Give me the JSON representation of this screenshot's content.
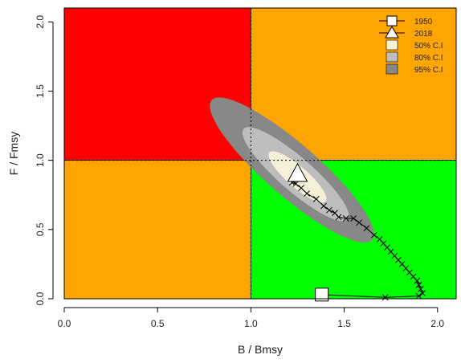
{
  "chart_data": {
    "type": "scatter",
    "title": "",
    "xlabel": "B / Bmsy",
    "ylabel": "F / Fmsy",
    "xlim": [
      0,
      2.1
    ],
    "ylim": [
      0,
      2.1
    ],
    "x_ticks": [
      0.0,
      0.5,
      1.0,
      1.5,
      2.0
    ],
    "x_tick_labels": [
      "0.0",
      "0.5",
      "1.0",
      "1.5",
      "2.0"
    ],
    "y_ticks": [
      0.0,
      0.5,
      1.0,
      1.5,
      2.0
    ],
    "y_tick_labels": [
      "0.0",
      "0.5",
      "1.0",
      "1.5",
      "2.0"
    ],
    "reference_lines": {
      "x": 1.0,
      "y": 1.0,
      "style": "dotted"
    },
    "quadrants": [
      {
        "name": "overfished-overfishing",
        "color": "#ff0000",
        "x": [
          0,
          1
        ],
        "y": [
          1,
          2.1
        ]
      },
      {
        "name": "healthy-overfishing",
        "color": "#ffa500",
        "x": [
          1,
          2.1
        ],
        "y": [
          1,
          2.1
        ]
      },
      {
        "name": "overfished-no-overfishing",
        "color": "#ffa500",
        "x": [
          0,
          1
        ],
        "y": [
          0,
          1
        ]
      },
      {
        "name": "healthy",
        "color": "#00ff00",
        "x": [
          1,
          2.1
        ],
        "y": [
          0,
          1
        ]
      }
    ],
    "trajectory": {
      "x": [
        1.38,
        1.72,
        1.9,
        1.92,
        1.91,
        1.9,
        1.89,
        1.87,
        1.85,
        1.83,
        1.81,
        1.79,
        1.77,
        1.75,
        1.73,
        1.71,
        1.69,
        1.66,
        1.62,
        1.58,
        1.55,
        1.51,
        1.47,
        1.45,
        1.42,
        1.39,
        1.35,
        1.3,
        1.27,
        1.24,
        1.22,
        1.23,
        1.25
      ],
      "y": [
        0.03,
        0.01,
        0.02,
        0.04,
        0.07,
        0.1,
        0.13,
        0.16,
        0.19,
        0.22,
        0.25,
        0.28,
        0.31,
        0.34,
        0.37,
        0.4,
        0.43,
        0.46,
        0.51,
        0.55,
        0.58,
        0.58,
        0.59,
        0.62,
        0.64,
        0.67,
        0.72,
        0.76,
        0.8,
        0.83,
        0.84,
        0.85,
        0.9
      ]
    },
    "start_point": {
      "label": "1950",
      "x": 1.38,
      "y": 0.03
    },
    "end_point": {
      "label": "2018",
      "x": 1.25,
      "y": 0.9
    },
    "confidence_regions": [
      {
        "label": "95% C.I",
        "color": "#888888",
        "cx": 1.22,
        "cy": 0.93,
        "rx_data": 0.57,
        "ry_data": 0.14,
        "angle_deg": 41
      },
      {
        "label": "80% C.I",
        "color": "#bdbdbd",
        "cx": 1.24,
        "cy": 0.9,
        "rx_data": 0.37,
        "ry_data": 0.09,
        "angle_deg": 41
      },
      {
        "label": "50% C.I",
        "color": "#f5f0d8",
        "cx": 1.25,
        "cy": 0.88,
        "rx_data": 0.2,
        "ry_data": 0.055,
        "angle_deg": 41
      }
    ],
    "legend": {
      "placement": "top-right",
      "entries": [
        {
          "label": "1950",
          "symbol": "square"
        },
        {
          "label": "2018",
          "symbol": "triangle"
        },
        {
          "label": "50% C.I",
          "symbol": "fill",
          "color": "#f5f0d8"
        },
        {
          "label": "80% C.I",
          "symbol": "fill",
          "color": "#bdbdbd"
        },
        {
          "label": "95% C.I",
          "symbol": "fill",
          "color": "#888888"
        }
      ]
    },
    "grid": false
  }
}
